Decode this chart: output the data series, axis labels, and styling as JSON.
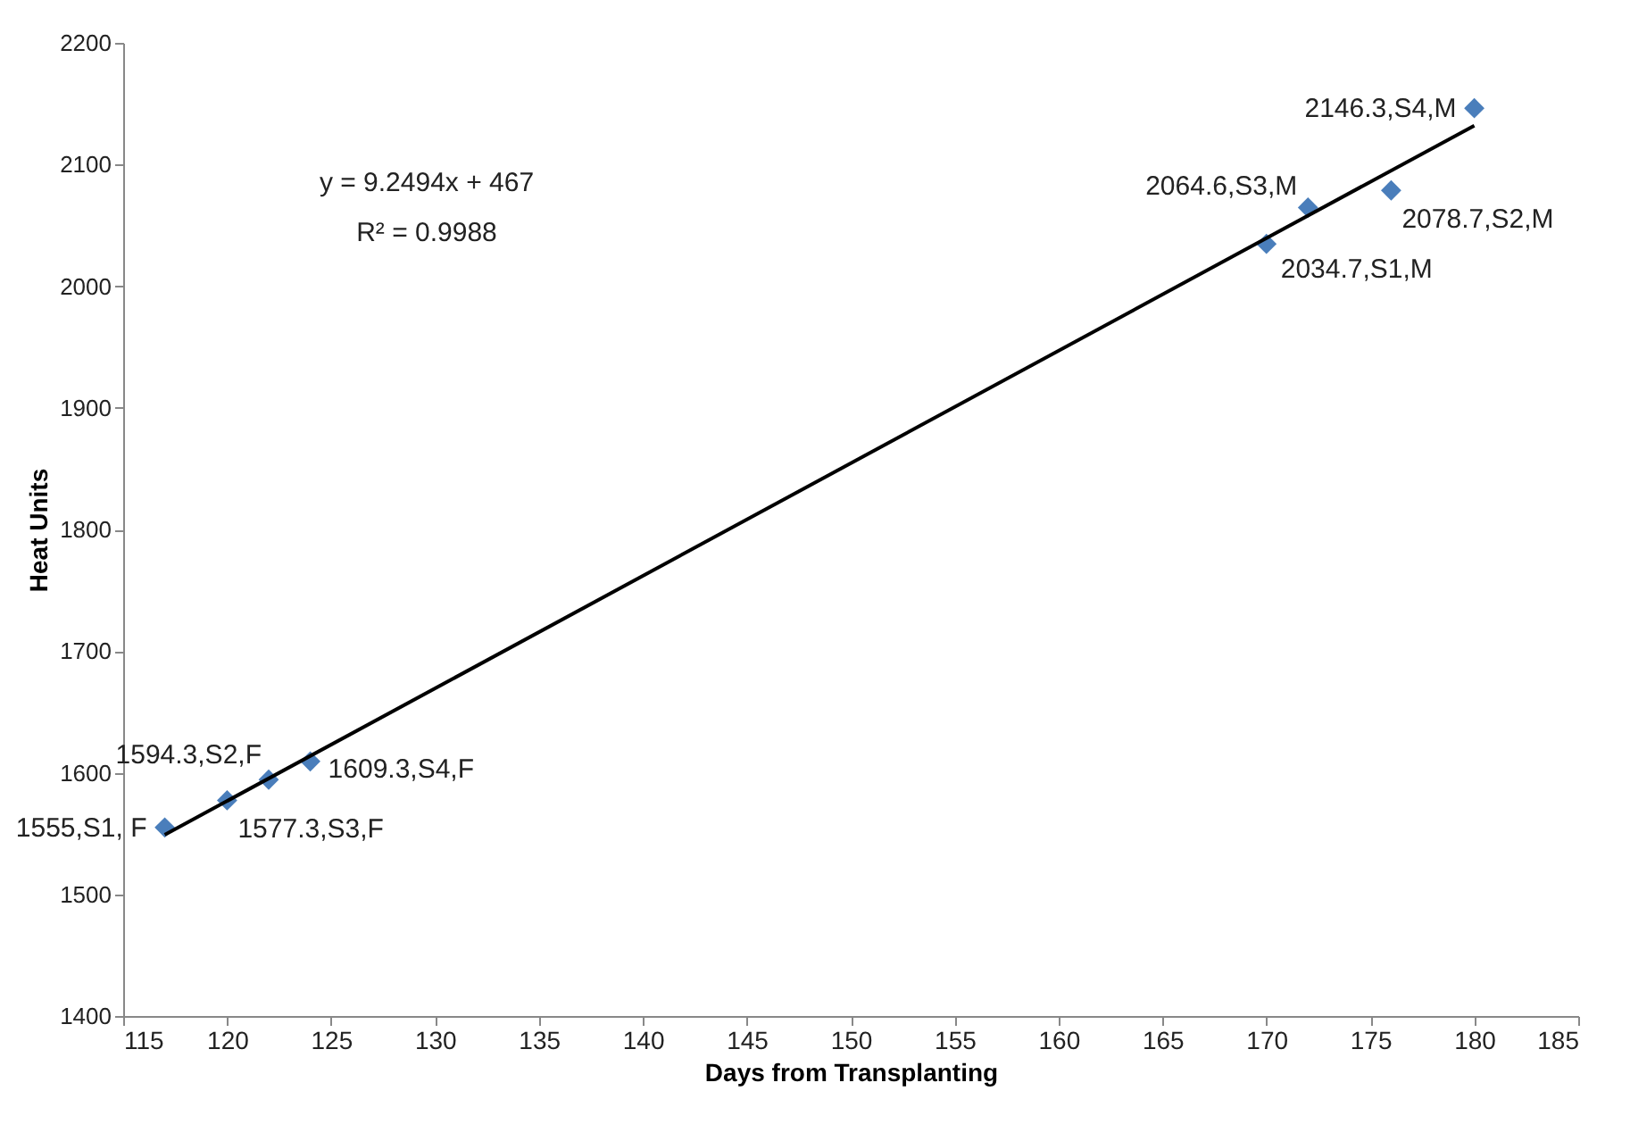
{
  "chart_data": {
    "type": "scatter",
    "xlabel": "Days from Transplanting",
    "ylabel": "Heat Units",
    "xlim": [
      115,
      185
    ],
    "xticks": [
      115,
      120,
      125,
      130,
      135,
      140,
      145,
      150,
      155,
      160,
      165,
      170,
      175,
      180,
      185
    ],
    "ylim": [
      1400,
      2200
    ],
    "yticks": [
      1400,
      1500,
      1600,
      1700,
      1800,
      1900,
      2000,
      2100,
      2200
    ],
    "marker": "diamond",
    "annotations": [
      "y = 9.2494x + 467",
      "R² = 0.9988"
    ],
    "series": [
      {
        "color": "#4a7ebb",
        "x": [
          117,
          120,
          122,
          124,
          170,
          172,
          176,
          180
        ],
        "values": [
          1555,
          1577.3,
          1594.3,
          1609.3,
          2034.7,
          2064.6,
          2078.7,
          2146.3
        ],
        "value_labels": [
          "1555,S1, F",
          "1577.3,S3,F",
          "1594.3,S2,F",
          "1609.3,S4,F",
          "2034.7,S1,M",
          "2064.6,S3,M",
          "2078.7,S2,M",
          "2146.3,S4,M"
        ]
      },
      {
        "type": "line",
        "color": "#000000",
        "marker": "none",
        "x": [
          117,
          180
        ],
        "values": [
          1549,
          2132
        ]
      }
    ]
  }
}
